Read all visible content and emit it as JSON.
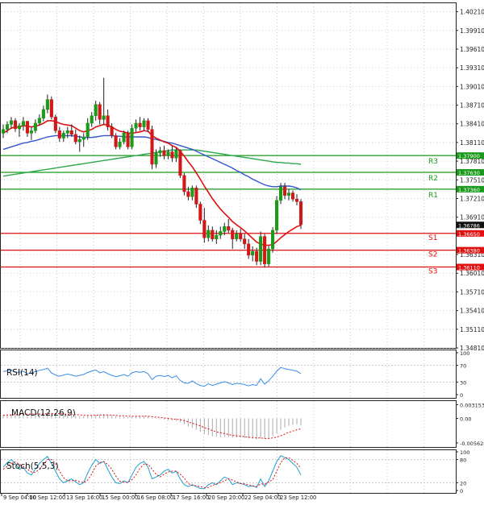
{
  "chart_data": {
    "type": "candlestick",
    "main_panel": {
      "price_axis_ticks": [
        "1.40210",
        "1.39910",
        "1.39610",
        "1.39310",
        "1.39010",
        "1.38710",
        "1.38410",
        "1.38110",
        "1.37810",
        "1.37510",
        "1.37210",
        "1.36910",
        "1.36310",
        "1.36010",
        "1.35710",
        "1.35410",
        "1.35110",
        "1.34810"
      ],
      "ylim": [
        1.3481,
        1.4036
      ],
      "levels": [
        {
          "name": "R3",
          "value": 1.379,
          "label": "1.37900",
          "color": "#1a9a1a"
        },
        {
          "name": "R2",
          "value": 1.3763,
          "label": "1.37630",
          "color": "#1a9a1a"
        },
        {
          "name": "R1",
          "value": 1.3736,
          "label": "1.37360",
          "color": "#1a9a1a"
        },
        {
          "name": "S1",
          "value": 1.3665,
          "label": "1.36650",
          "color": "#e01010"
        },
        {
          "name": "S2",
          "value": 1.3638,
          "label": "1.36380",
          "color": "#e01010"
        },
        {
          "name": "S3",
          "value": 1.3611,
          "label": "1.36110",
          "color": "#e01010"
        }
      ],
      "current_price": {
        "value": 1.36786,
        "label": "1.36786"
      },
      "candles": [
        [
          1.3826,
          1.384,
          1.3818,
          1.3832
        ],
        [
          1.3832,
          1.3845,
          1.3826,
          1.384
        ],
        [
          1.384,
          1.3852,
          1.3834,
          1.3846
        ],
        [
          1.3846,
          1.385,
          1.3828,
          1.3833
        ],
        [
          1.3833,
          1.3842,
          1.382,
          1.3838
        ],
        [
          1.3838,
          1.3852,
          1.383,
          1.3845
        ],
        [
          1.3845,
          1.3846,
          1.382,
          1.3826
        ],
        [
          1.3826,
          1.3836,
          1.3815,
          1.383
        ],
        [
          1.383,
          1.3848,
          1.3826,
          1.3842
        ],
        [
          1.3842,
          1.3856,
          1.3838,
          1.385
        ],
        [
          1.385,
          1.387,
          1.3845,
          1.3864
        ],
        [
          1.3864,
          1.3888,
          1.3858,
          1.388
        ],
        [
          1.388,
          1.3885,
          1.3848,
          1.3852
        ],
        [
          1.3852,
          1.3856,
          1.3826,
          1.383
        ],
        [
          1.383,
          1.3836,
          1.3812,
          1.3818
        ],
        [
          1.3818,
          1.383,
          1.3812,
          1.3826
        ],
        [
          1.3826,
          1.3836,
          1.3818,
          1.383
        ],
        [
          1.383,
          1.384,
          1.382,
          1.3824
        ],
        [
          1.3824,
          1.3832,
          1.3808,
          1.3812
        ],
        [
          1.3812,
          1.3822,
          1.3796,
          1.3816
        ],
        [
          1.3816,
          1.3826,
          1.3804,
          1.382
        ],
        [
          1.382,
          1.385,
          1.3815,
          1.3842
        ],
        [
          1.3842,
          1.386,
          1.3836,
          1.3854
        ],
        [
          1.3854,
          1.3878,
          1.3846,
          1.3872
        ],
        [
          1.3872,
          1.3876,
          1.384,
          1.3848
        ],
        [
          1.3848,
          1.3915,
          1.384,
          1.3854
        ],
        [
          1.3854,
          1.3864,
          1.383,
          1.3836
        ],
        [
          1.3836,
          1.3842,
          1.3818,
          1.3822
        ],
        [
          1.3822,
          1.3826,
          1.38,
          1.3804
        ],
        [
          1.3804,
          1.3818,
          1.38,
          1.3812
        ],
        [
          1.3812,
          1.383,
          1.3808,
          1.3826
        ],
        [
          1.3826,
          1.383,
          1.38,
          1.3804
        ],
        [
          1.3804,
          1.384,
          1.38,
          1.3834
        ],
        [
          1.3834,
          1.3848,
          1.3828,
          1.3842
        ],
        [
          1.3842,
          1.3852,
          1.383,
          1.3836
        ],
        [
          1.3836,
          1.385,
          1.383,
          1.3846
        ],
        [
          1.3846,
          1.385,
          1.3828,
          1.3832
        ],
        [
          1.3832,
          1.3838,
          1.3768,
          1.3776
        ],
        [
          1.3776,
          1.38,
          1.377,
          1.3794
        ],
        [
          1.3794,
          1.3804,
          1.3788,
          1.3798
        ],
        [
          1.3798,
          1.3806,
          1.3784,
          1.379
        ],
        [
          1.379,
          1.38,
          1.3784,
          1.3796
        ],
        [
          1.3796,
          1.3806,
          1.378,
          1.3786
        ],
        [
          1.3786,
          1.3802,
          1.378,
          1.3798
        ],
        [
          1.3798,
          1.38,
          1.3754,
          1.3758
        ],
        [
          1.3758,
          1.3762,
          1.3726,
          1.3732
        ],
        [
          1.3732,
          1.374,
          1.3718,
          1.3724
        ],
        [
          1.3724,
          1.3742,
          1.3718,
          1.3738
        ],
        [
          1.3738,
          1.3742,
          1.3706,
          1.3712
        ],
        [
          1.3712,
          1.3716,
          1.368,
          1.3686
        ],
        [
          1.3686,
          1.3706,
          1.365,
          1.3658
        ],
        [
          1.3658,
          1.3678,
          1.3652,
          1.367
        ],
        [
          1.367,
          1.3676,
          1.3652,
          1.3656
        ],
        [
          1.3656,
          1.367,
          1.3648,
          1.3662
        ],
        [
          1.3662,
          1.3676,
          1.3656,
          1.3668
        ],
        [
          1.3668,
          1.3682,
          1.3662,
          1.3676
        ],
        [
          1.3676,
          1.3688,
          1.3666,
          1.367
        ],
        [
          1.367,
          1.3674,
          1.364,
          1.3656
        ],
        [
          1.3656,
          1.367,
          1.3652,
          1.3664
        ],
        [
          1.3664,
          1.3672,
          1.3652,
          1.3656
        ],
        [
          1.3656,
          1.3664,
          1.364,
          1.3648
        ],
        [
          1.3648,
          1.3656,
          1.3624,
          1.363
        ],
        [
          1.363,
          1.3644,
          1.362,
          1.3636
        ],
        [
          1.3636,
          1.3642,
          1.3614,
          1.362
        ],
        [
          1.362,
          1.3668,
          1.3614,
          1.366
        ],
        [
          1.366,
          1.3664,
          1.361,
          1.3616
        ],
        [
          1.3616,
          1.3645,
          1.3612,
          1.364
        ],
        [
          1.364,
          1.3675,
          1.3634,
          1.367
        ],
        [
          1.367,
          1.3725,
          1.3664,
          1.3718
        ],
        [
          1.3718,
          1.3746,
          1.3712,
          1.374
        ],
        [
          1.374,
          1.3746,
          1.372,
          1.3726
        ],
        [
          1.3726,
          1.3736,
          1.3718,
          1.373
        ],
        [
          1.373,
          1.3734,
          1.3716,
          1.372
        ],
        [
          1.372,
          1.3728,
          1.371,
          1.3716
        ],
        [
          1.3716,
          1.372,
          1.3672,
          1.3679
        ]
      ],
      "ma_fast_color": "#e01010",
      "ma_mid_color": "#3355cc",
      "ma_slow_color": "#2ea84e",
      "ma_fast": [
        1.3826,
        1.383,
        1.3834,
        1.3836,
        1.3836,
        1.3838,
        1.3837,
        1.3836,
        1.3837,
        1.3839,
        1.3842,
        1.3846,
        1.3846,
        1.3845,
        1.3842,
        1.384,
        1.3839,
        1.3838,
        1.3834,
        1.383,
        1.3828,
        1.383,
        1.3832,
        1.3836,
        1.3838,
        1.384,
        1.3839,
        1.3836,
        1.3832,
        1.3829,
        1.3828,
        1.3826,
        1.3826,
        1.3827,
        1.3828,
        1.383,
        1.3829,
        1.3822,
        1.3818,
        1.3815,
        1.3812,
        1.381,
        1.3806,
        1.3803,
        1.3797,
        1.3789,
        1.378,
        1.3772,
        1.3762,
        1.3752,
        1.3741,
        1.3731,
        1.3721,
        1.3712,
        1.3704,
        1.3697,
        1.3691,
        1.3684,
        1.3679,
        1.3674,
        1.3669,
        1.3663,
        1.3657,
        1.3651,
        1.3648,
        1.3646,
        1.3646,
        1.3647,
        1.3652,
        1.3658,
        1.3663,
        1.3668,
        1.3672,
        1.3676,
        1.3678
      ],
      "ma_mid": [
        1.38,
        1.3802,
        1.3804,
        1.3806,
        1.3808,
        1.381,
        1.3811,
        1.3813,
        1.3814,
        1.3816,
        1.3818,
        1.382,
        1.3821,
        1.3822,
        1.3822,
        1.3822,
        1.3822,
        1.3822,
        1.3821,
        1.382,
        1.3819,
        1.3819,
        1.3819,
        1.382,
        1.3821,
        1.3822,
        1.3822,
        1.3822,
        1.3821,
        1.3821,
        1.382,
        1.382,
        1.382,
        1.382,
        1.382,
        1.382,
        1.3819,
        1.3817,
        1.3816,
        1.3814,
        1.3813,
        1.3811,
        1.381,
        1.3808,
        1.3806,
        1.3804,
        1.3802,
        1.38,
        1.3797,
        1.3794,
        1.3791,
        1.3788,
        1.3785,
        1.3782,
        1.3779,
        1.3776,
        1.3773,
        1.377,
        1.3766,
        1.3763,
        1.3759,
        1.3756,
        1.3752,
        1.3749,
        1.3746,
        1.3743,
        1.3741,
        1.374,
        1.374,
        1.3741,
        1.3741,
        1.3741,
        1.374,
        1.3738,
        1.3735
      ],
      "ma_slow": [
        1.3757,
        1.3758,
        1.3759,
        1.376,
        1.3761,
        1.3762,
        1.3763,
        1.3764,
        1.3765,
        1.3766,
        1.3767,
        1.3768,
        1.3769,
        1.377,
        1.3771,
        1.3772,
        1.3773,
        1.3774,
        1.3775,
        1.3776,
        1.3777,
        1.3778,
        1.3779,
        1.378,
        1.3781,
        1.3782,
        1.3783,
        1.3784,
        1.3785,
        1.3786,
        1.3787,
        1.3788,
        1.3789,
        1.379,
        1.3791,
        1.3792,
        1.3793,
        1.3794,
        1.3795,
        1.3796,
        1.3797,
        1.3798,
        1.3799,
        1.3799,
        1.3799,
        1.3799,
        1.3799,
        1.3799,
        1.3799,
        1.3798,
        1.3797,
        1.3796,
        1.3795,
        1.3794,
        1.3793,
        1.3792,
        1.3791,
        1.379,
        1.3789,
        1.3788,
        1.3787,
        1.3786,
        1.3785,
        1.3784,
        1.3783,
        1.3782,
        1.3781,
        1.378,
        1.3779,
        1.3779,
        1.3778,
        1.3778,
        1.3777,
        1.3777,
        1.3776
      ]
    },
    "rsi_panel": {
      "label": "RSI(14)",
      "ticks": [
        "100",
        "70",
        "30",
        "0"
      ],
      "ylim": [
        0,
        100
      ],
      "color": "#3a8ee6",
      "values": [
        55,
        57,
        59,
        54,
        53,
        56,
        50,
        52,
        55,
        58,
        60,
        63,
        52,
        47,
        44,
        47,
        49,
        47,
        44,
        46,
        48,
        53,
        56,
        59,
        52,
        55,
        50,
        46,
        43,
        45,
        48,
        44,
        52,
        55,
        53,
        55,
        50,
        36,
        44,
        46,
        43,
        46,
        40,
        45,
        34,
        28,
        27,
        33,
        26,
        22,
        20,
        26,
        22,
        25,
        28,
        31,
        28,
        24,
        27,
        26,
        24,
        21,
        24,
        22,
        38,
        25,
        33,
        44,
        56,
        65,
        62,
        60,
        58,
        56,
        50
      ]
    },
    "macd_panel": {
      "label": "MACD(12,26,9)",
      "ticks": [
        "0.003153",
        "0.00",
        "-0.005628"
      ],
      "ylim": [
        -0.0062,
        0.0038
      ],
      "histogram_color": "#aaaaaa",
      "signal_color": "#e01010",
      "histogram": [
        0.0008,
        0.0009,
        0.001,
        0.001,
        0.001,
        0.0011,
        0.001,
        0.001,
        0.001,
        0.0011,
        0.0012,
        0.0014,
        0.0013,
        0.0011,
        0.0009,
        0.0008,
        0.0008,
        0.0007,
        0.0006,
        0.0005,
        0.0005,
        0.0006,
        0.0007,
        0.0009,
        0.0009,
        0.001,
        0.0009,
        0.0007,
        0.0005,
        0.0004,
        0.0004,
        0.0003,
        0.0004,
        0.0005,
        0.0005,
        0.0006,
        0.0005,
        0.0001,
        -0.0001,
        -0.0002,
        -0.0003,
        -0.0004,
        -0.0005,
        -0.0006,
        -0.0009,
        -0.0014,
        -0.0019,
        -0.0022,
        -0.0026,
        -0.0031,
        -0.0036,
        -0.0038,
        -0.0041,
        -0.0042,
        -0.0043,
        -0.0043,
        -0.0043,
        -0.0044,
        -0.0044,
        -0.0044,
        -0.0045,
        -0.0046,
        -0.0047,
        -0.0048,
        -0.0046,
        -0.0047,
        -0.0045,
        -0.0041,
        -0.0034,
        -0.0026,
        -0.0021,
        -0.0017,
        -0.0015,
        -0.0014,
        -0.0016
      ],
      "signal": [
        0.0007,
        0.0008,
        0.0008,
        0.0009,
        0.0009,
        0.001,
        0.001,
        0.001,
        0.001,
        0.001,
        0.001,
        0.0011,
        0.0011,
        0.0011,
        0.0011,
        0.001,
        0.001,
        0.0009,
        0.0009,
        0.0008,
        0.0007,
        0.0007,
        0.0007,
        0.0007,
        0.0008,
        0.0008,
        0.0008,
        0.0008,
        0.0007,
        0.0006,
        0.0006,
        0.0005,
        0.0005,
        0.0005,
        0.0005,
        0.0005,
        0.0005,
        0.0004,
        0.0003,
        0.0002,
        0.0001,
        0.0,
        -0.0001,
        -0.0002,
        -0.0003,
        -0.0005,
        -0.0008,
        -0.0011,
        -0.0014,
        -0.0017,
        -0.0021,
        -0.0024,
        -0.0028,
        -0.0031,
        -0.0033,
        -0.0035,
        -0.0037,
        -0.0039,
        -0.004,
        -0.0041,
        -0.0042,
        -0.0043,
        -0.0044,
        -0.0045,
        -0.0045,
        -0.0046,
        -0.0046,
        -0.0045,
        -0.0043,
        -0.004,
        -0.0036,
        -0.0032,
        -0.0029,
        -0.0026,
        -0.0024
      ]
    },
    "stoch_panel": {
      "label": "Stoch(5,5,3)",
      "ticks": [
        "100",
        "80",
        "20",
        "0"
      ],
      "ylim": [
        0,
        100
      ],
      "main_color": "#20a0d0",
      "signal_color": "#e01010",
      "main": [
        60,
        72,
        80,
        70,
        55,
        60,
        45,
        40,
        55,
        70,
        80,
        88,
        70,
        50,
        30,
        20,
        25,
        30,
        22,
        15,
        20,
        45,
        65,
        80,
        70,
        75,
        55,
        35,
        20,
        18,
        25,
        20,
        40,
        60,
        70,
        75,
        60,
        30,
        35,
        40,
        50,
        55,
        45,
        50,
        30,
        15,
        10,
        15,
        10,
        5,
        5,
        15,
        20,
        15,
        25,
        35,
        30,
        15,
        20,
        18,
        15,
        10,
        12,
        8,
        30,
        10,
        25,
        50,
        75,
        90,
        85,
        80,
        70,
        60,
        40
      ],
      "signal": [
        55,
        62,
        70,
        74,
        68,
        62,
        55,
        48,
        47,
        55,
        68,
        80,
        80,
        70,
        50,
        33,
        25,
        25,
        26,
        23,
        20,
        27,
        43,
        63,
        72,
        75,
        67,
        55,
        37,
        24,
        21,
        21,
        28,
        40,
        57,
        68,
        68,
        55,
        42,
        35,
        42,
        48,
        50,
        50,
        42,
        32,
        18,
        13,
        12,
        10,
        7,
        8,
        13,
        17,
        20,
        25,
        30,
        27,
        22,
        18,
        17,
        14,
        12,
        10,
        17,
        16,
        22,
        28,
        50,
        72,
        85,
        85,
        78,
        70,
        57
      ]
    },
    "x_axis_labels": [
      "9 Sep 04:00",
      "10 Sep 12:00",
      "13 Sep 16:00",
      "15 Sep 00:00",
      "16 Sep 08:00",
      "17 Sep 16:00",
      "20 Sep 20:00",
      "22 Sep 04:00",
      "23 Sep 12:00"
    ]
  }
}
